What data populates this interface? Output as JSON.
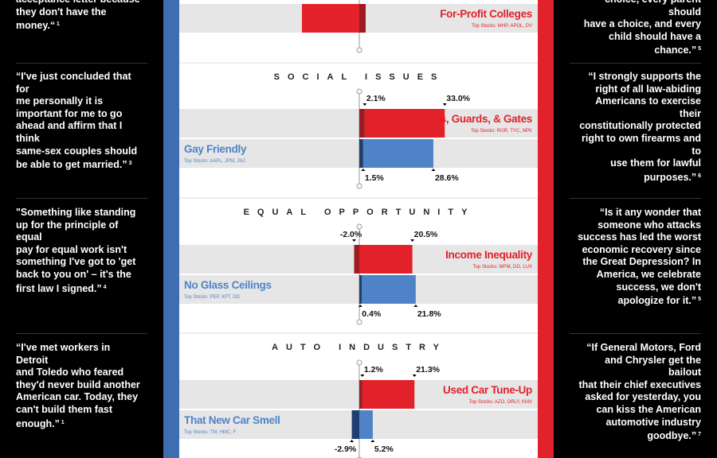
{
  "colors": {
    "red": "#e3212a",
    "red_dark": "#9b1b1f",
    "blue": "#4f83c7",
    "blue_dark": "#1f3d6e",
    "row_bg": "#e6e6e6"
  },
  "quotes_left": [
    {
      "lines": [
        "acceptance letter because",
        "they don't have the",
        "money.“"
      ],
      "ref": "1"
    },
    {
      "lines": [
        "“I've just concluded that for",
        "me personally it is",
        "important for me to go",
        "ahead and affirm that I think",
        "same-sex couples should",
        "be able to get married.”"
      ],
      "ref": "3"
    },
    {
      "lines": [
        "\"Something like standing",
        "up for the principle of equal",
        "pay for equal work isn't",
        "something I've got to 'get",
        "back to you on' – it's the",
        "first law I signed.”"
      ],
      "ref": "4"
    },
    {
      "lines": [
        "“I've met workers in Detroit",
        "and Toledo who feared",
        "they'd never build another",
        "American car. Today, they",
        "can't build them fast",
        "enough.”"
      ],
      "ref": "1"
    }
  ],
  "quotes_right": [
    {
      "lines": [
        "choice, every parent should",
        "have a choice, and every",
        "child should have a",
        "chance.”"
      ],
      "ref": "5"
    },
    {
      "lines": [
        "“I strongly supports the",
        "right of all law-abiding",
        "Americans to exercise their",
        "constitutionally protected",
        "right to own firearms and to",
        "use them for lawful",
        "purposes.”"
      ],
      "ref": "6"
    },
    {
      "lines": [
        "“Is it any wonder that",
        "someone who attacks",
        "success has led the worst",
        "economic recovery since",
        "the Great Depression? In",
        "America, we celebrate",
        "success, we don't",
        "apologize for it.”"
      ],
      "ref": "5"
    },
    {
      "lines": [
        "“If General Motors, Ford",
        "and Chrysler get the bailout",
        "that their chief executives",
        "asked for yesterday, you",
        "can kiss the American",
        "automotive industry",
        "goodbye.”"
      ],
      "ref": "7"
    }
  ],
  "chart_data": {
    "type": "bar",
    "orientation": "horizontal",
    "axis_zero": 0,
    "categories": [
      {
        "name": "",
        "rows": [
          {
            "side": "red",
            "name": "For-Profit Colleges",
            "stocks": "Top Stocks: MHP, APOL, DV",
            "values": [],
            "labels": []
          }
        ]
      },
      {
        "name": "SOCIAL ISSUES",
        "rows": [
          {
            "side": "red",
            "name": "Guns, Guards, & Gates",
            "stocks": "Top Stocks: RGR, TYC, NPK",
            "values": [
              2.1,
              33.0
            ],
            "labels": [
              "2.1%",
              "33.0%"
            ]
          },
          {
            "side": "blue",
            "name": "Gay Friendly",
            "stocks": "Top Stocks: AAPL, JPM, JNJ",
            "values": [
              1.5,
              28.6
            ],
            "labels": [
              "1.5%",
              "28.6%"
            ]
          }
        ]
      },
      {
        "name": "EQUAL OPPORTUNITY",
        "rows": [
          {
            "side": "red",
            "name": "Income Inequality",
            "stocks": "Top Stocks: WFM, DG, LUX",
            "values": [
              -2.0,
              20.5
            ],
            "labels": [
              "-2.0%",
              "20.5%"
            ]
          },
          {
            "side": "blue",
            "name": "No Glass Ceilings",
            "stocks": "Top Stocks: PEP, KFT, DD",
            "values": [
              0.4,
              21.8
            ],
            "labels": [
              "0.4%",
              "21.8%"
            ]
          }
        ]
      },
      {
        "name": "AUTO INDUSTRY",
        "rows": [
          {
            "side": "red",
            "name": "Used Car Tune-Up",
            "stocks": "Top Stocks: AZO, ORLY, KMX",
            "values": [
              1.2,
              21.3
            ],
            "labels": [
              "1.2%",
              "21.3%"
            ]
          },
          {
            "side": "blue",
            "name": "That New Car Smell",
            "stocks": "Top Stocks: TM, HMC, F",
            "values": [
              -2.9,
              5.2
            ],
            "labels": [
              "-2.9%",
              "5.2%"
            ]
          }
        ]
      }
    ]
  }
}
